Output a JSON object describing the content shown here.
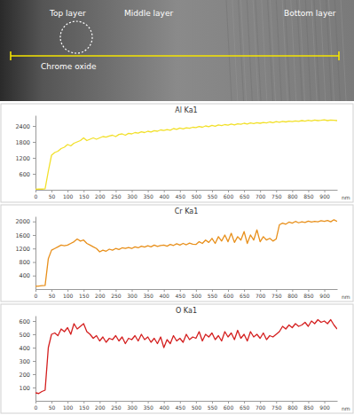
{
  "micrograph": {
    "labels": [
      "Top layer",
      "Middle layer",
      "Bottom layer",
      "Chrome oxide"
    ]
  },
  "chart_data": [
    {
      "type": "line",
      "title": "Al Ka1",
      "x_label": "nm",
      "color": "#f2e02a",
      "x": [
        0,
        10,
        20,
        30,
        40,
        50,
        60,
        70,
        80,
        90,
        100,
        110,
        120,
        130,
        140,
        150,
        160,
        170,
        180,
        190,
        200,
        210,
        220,
        230,
        240,
        250,
        260,
        270,
        280,
        290,
        300,
        310,
        320,
        330,
        340,
        350,
        360,
        370,
        380,
        390,
        400,
        410,
        420,
        430,
        440,
        450,
        460,
        470,
        480,
        490,
        500,
        510,
        520,
        530,
        540,
        550,
        560,
        570,
        580,
        590,
        600,
        610,
        620,
        630,
        640,
        650,
        660,
        670,
        680,
        690,
        700,
        710,
        720,
        730,
        740,
        750,
        760,
        770,
        780,
        790,
        800,
        810,
        820,
        830,
        840,
        850,
        860,
        870,
        880,
        890,
        900,
        910,
        920,
        930,
        940
      ],
      "values": [
        20,
        30,
        25,
        40,
        700,
        1300,
        1400,
        1450,
        1550,
        1600,
        1700,
        1650,
        1750,
        1800,
        1850,
        1950,
        1850,
        1900,
        1950,
        1900,
        1950,
        2000,
        1980,
        2020,
        2050,
        2000,
        2080,
        2100,
        2050,
        2120,
        2100,
        2150,
        2130,
        2180,
        2150,
        2200,
        2170,
        2220,
        2200,
        2250,
        2230,
        2260,
        2240,
        2300,
        2270,
        2320,
        2290,
        2330,
        2310,
        2350,
        2340,
        2380,
        2350,
        2400,
        2370,
        2420,
        2390,
        2440,
        2410,
        2450,
        2430,
        2470,
        2440,
        2480,
        2460,
        2500,
        2470,
        2510,
        2490,
        2520,
        2500,
        2530,
        2510,
        2550,
        2520,
        2560,
        2540,
        2570,
        2550,
        2580,
        2560,
        2590,
        2570,
        2600,
        2580,
        2610,
        2590,
        2620,
        2600,
        2610,
        2630,
        2600,
        2620,
        2610,
        2600
      ],
      "xlim": [
        0,
        940
      ],
      "xticks": [
        0,
        50,
        100,
        150,
        200,
        250,
        300,
        350,
        400,
        450,
        500,
        550,
        600,
        650,
        700,
        750,
        800,
        850,
        900
      ],
      "ylim": [
        0,
        2800
      ],
      "yticks": [
        600,
        1200,
        1800,
        2400
      ]
    },
    {
      "type": "line",
      "title": "Cr Ka1",
      "x_label": "nm",
      "color": "#e8901c",
      "x": [
        0,
        10,
        20,
        30,
        40,
        50,
        60,
        70,
        80,
        90,
        100,
        110,
        120,
        130,
        140,
        150,
        160,
        170,
        180,
        190,
        200,
        210,
        220,
        230,
        240,
        250,
        260,
        270,
        280,
        290,
        300,
        310,
        320,
        330,
        340,
        350,
        360,
        370,
        380,
        390,
        400,
        410,
        420,
        430,
        440,
        450,
        460,
        470,
        480,
        490,
        500,
        510,
        520,
        530,
        540,
        550,
        560,
        570,
        580,
        590,
        600,
        610,
        620,
        630,
        640,
        650,
        660,
        670,
        680,
        690,
        700,
        710,
        720,
        730,
        740,
        750,
        760,
        770,
        780,
        790,
        800,
        810,
        820,
        830,
        840,
        850,
        860,
        870,
        880,
        890,
        900,
        910,
        920,
        930,
        940
      ],
      "values": [
        80,
        90,
        100,
        110,
        900,
        1150,
        1200,
        1250,
        1300,
        1280,
        1300,
        1350,
        1400,
        1480,
        1420,
        1450,
        1350,
        1300,
        1250,
        1200,
        1100,
        1150,
        1120,
        1180,
        1150,
        1200,
        1170,
        1220,
        1200,
        1230,
        1200,
        1250,
        1220,
        1270,
        1240,
        1280,
        1250,
        1300,
        1260,
        1290,
        1300,
        1270,
        1320,
        1290,
        1340,
        1300,
        1350,
        1310,
        1360,
        1330,
        1320,
        1400,
        1350,
        1450,
        1380,
        1500,
        1350,
        1550,
        1420,
        1600,
        1400,
        1650,
        1380,
        1550,
        1450,
        1700,
        1350,
        1600,
        1450,
        1750,
        1400,
        1550,
        1450,
        1500,
        1420,
        1480,
        1900,
        1950,
        1920,
        1980,
        1950,
        2000,
        1960,
        1990,
        1970,
        2010,
        1980,
        2000,
        1990,
        2020,
        2000,
        2030,
        1990,
        2050,
        2000
      ],
      "xlim": [
        0,
        940
      ],
      "xticks": [
        0,
        50,
        100,
        150,
        200,
        250,
        300,
        350,
        400,
        450,
        500,
        550,
        600,
        650,
        700,
        750,
        800,
        850,
        900
      ],
      "ylim": [
        0,
        2150
      ],
      "yticks": [
        400,
        800,
        1200,
        1600,
        2000
      ]
    },
    {
      "type": "line",
      "title": "O Ka1",
      "x_label": "nm",
      "color": "#d41f1f",
      "x": [
        0,
        10,
        20,
        30,
        40,
        50,
        60,
        70,
        80,
        90,
        100,
        110,
        120,
        130,
        140,
        150,
        160,
        170,
        180,
        190,
        200,
        210,
        220,
        230,
        240,
        250,
        260,
        270,
        280,
        290,
        300,
        310,
        320,
        330,
        340,
        350,
        360,
        370,
        380,
        390,
        400,
        410,
        420,
        430,
        440,
        450,
        460,
        470,
        480,
        490,
        500,
        510,
        520,
        530,
        540,
        550,
        560,
        570,
        580,
        590,
        600,
        610,
        620,
        630,
        640,
        650,
        660,
        670,
        680,
        690,
        700,
        710,
        720,
        730,
        740,
        750,
        760,
        770,
        780,
        790,
        800,
        810,
        820,
        830,
        840,
        850,
        860,
        870,
        880,
        890,
        900,
        910,
        920,
        930,
        940
      ],
      "values": [
        60,
        55,
        70,
        80,
        400,
        500,
        510,
        490,
        540,
        520,
        550,
        500,
        580,
        540,
        560,
        580,
        520,
        500,
        470,
        490,
        450,
        480,
        440,
        470,
        460,
        490,
        450,
        480,
        430,
        470,
        460,
        490,
        450,
        500,
        460,
        480,
        440,
        470,
        430,
        480,
        400,
        460,
        430,
        490,
        450,
        470,
        440,
        500,
        460,
        480,
        470,
        520,
        450,
        500,
        480,
        510,
        460,
        490,
        450,
        520,
        480,
        510,
        460,
        530,
        470,
        500,
        450,
        520,
        480,
        500,
        470,
        510,
        460,
        490,
        480,
        500,
        520,
        560,
        540,
        570,
        550,
        580,
        560,
        570,
        590,
        560,
        600,
        580,
        610,
        590,
        600,
        580,
        610,
        570,
        540
      ],
      "xlim": [
        0,
        940
      ],
      "xticks": [
        0,
        50,
        100,
        150,
        200,
        250,
        300,
        350,
        400,
        450,
        500,
        550,
        600,
        650,
        700,
        750,
        800,
        850,
        900
      ],
      "ylim": [
        0,
        640
      ],
      "yticks": [
        100,
        200,
        300,
        400,
        500,
        600
      ]
    }
  ]
}
